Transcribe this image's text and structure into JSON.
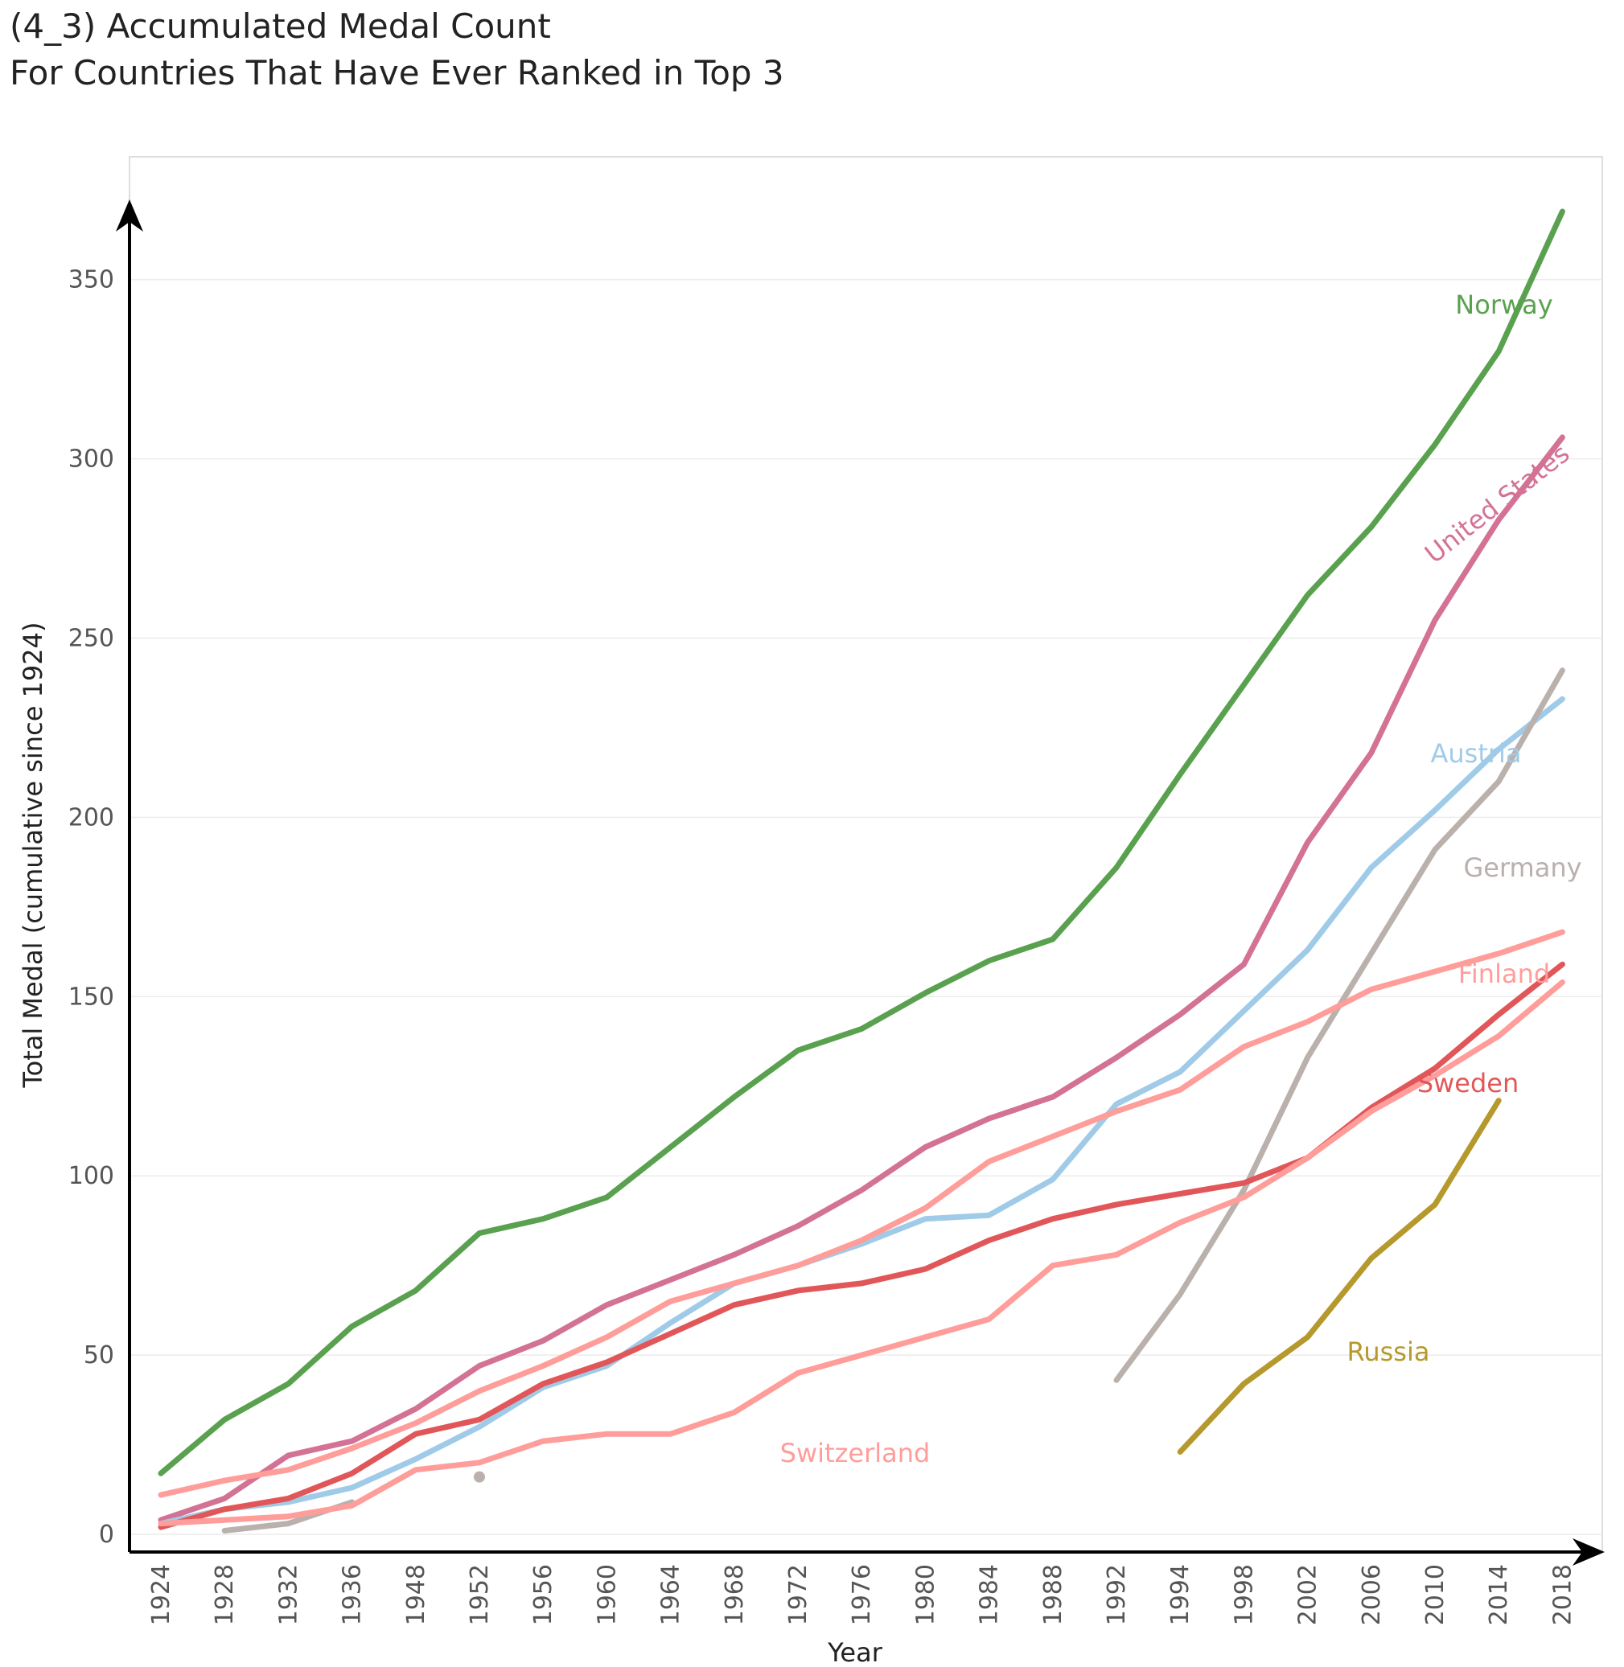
{
  "title_line1": "(4_3) Accumulated Medal Count",
  "title_line2": "For Countries That Have Ever Ranked in Top 3",
  "chart_data": {
    "type": "line",
    "xlabel": "Year",
    "ylabel": "Total Medal (cumulative since 1924)",
    "categories": [
      "1924",
      "1928",
      "1932",
      "1936",
      "1948",
      "1952",
      "1956",
      "1960",
      "1964",
      "1968",
      "1972",
      "1976",
      "1980",
      "1984",
      "1988",
      "1992",
      "1994",
      "1998",
      "2002",
      "2006",
      "2010",
      "2014",
      "2018"
    ],
    "yticks": [
      "0",
      "50",
      "100",
      "150",
      "200",
      "250",
      "300",
      "350"
    ],
    "ylim": [
      -5,
      375
    ],
    "grid": true,
    "series": [
      {
        "name": "Norway",
        "color": "#59a14f",
        "values": [
          17,
          32,
          42,
          58,
          68,
          84,
          88,
          94,
          108,
          122,
          135,
          141,
          151,
          160,
          166,
          186,
          212,
          237,
          262,
          281,
          304,
          330,
          369
        ]
      },
      {
        "name": "United States",
        "color": "#d37295",
        "values": [
          4,
          10,
          22,
          26,
          35,
          47,
          54,
          64,
          71,
          78,
          86,
          96,
          108,
          116,
          122,
          133,
          145,
          159,
          193,
          218,
          255,
          283,
          306
        ]
      },
      {
        "name": "Austria",
        "color": "#a0cbe8",
        "values": [
          3,
          7,
          9,
          13,
          21,
          30,
          41,
          47,
          59,
          70,
          75,
          81,
          88,
          89,
          99,
          120,
          129,
          146,
          163,
          186,
          202,
          219,
          233
        ]
      },
      {
        "name": "Germany",
        "color": "#bab0ac",
        "values": [
          null,
          1,
          3,
          9,
          null,
          16,
          null,
          null,
          null,
          null,
          null,
          null,
          null,
          null,
          null,
          43,
          67,
          96,
          133,
          162,
          191,
          210,
          241
        ]
      },
      {
        "name": "Finland",
        "color": "#ff9d9a",
        "values": [
          11,
          15,
          18,
          24,
          31,
          40,
          47,
          55,
          65,
          70,
          75,
          82,
          91,
          104,
          111,
          118,
          124,
          136,
          143,
          152,
          157,
          162,
          168
        ]
      },
      {
        "name": "Sweden",
        "color": "#e15759",
        "values": [
          2,
          7,
          10,
          17,
          28,
          32,
          42,
          48,
          56,
          64,
          68,
          70,
          74,
          82,
          88,
          92,
          95,
          98,
          105,
          119,
          130,
          145,
          159
        ]
      },
      {
        "name": "Switzerland",
        "color": "#ff9d9a",
        "values": [
          3,
          4,
          5,
          8,
          18,
          20,
          26,
          28,
          28,
          34,
          45,
          50,
          55,
          60,
          75,
          78,
          87,
          94,
          105,
          118,
          128,
          139,
          154
        ]
      },
      {
        "name": "Russia",
        "color": "#b6992d",
        "values": [
          null,
          null,
          null,
          null,
          null,
          null,
          null,
          null,
          null,
          null,
          null,
          null,
          null,
          null,
          null,
          null,
          23,
          42,
          55,
          77,
          92,
          121,
          null
        ]
      }
    ]
  }
}
